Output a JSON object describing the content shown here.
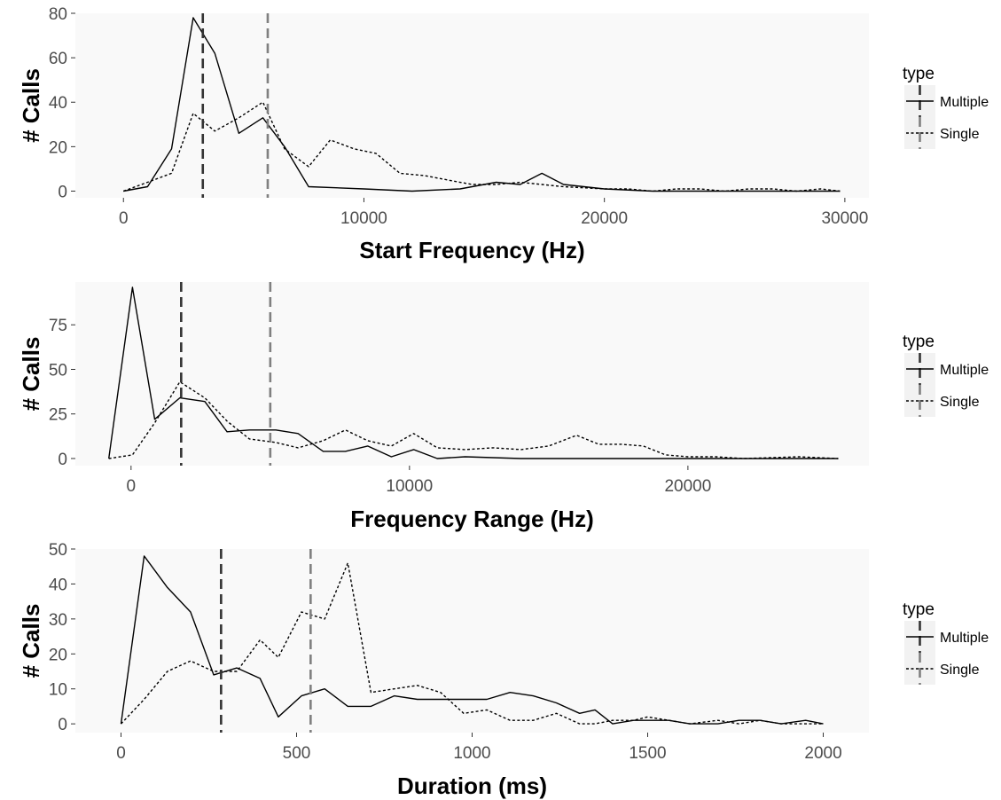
{
  "chart_data": [
    {
      "type": "line",
      "xlabel": "Start Frequency (Hz)",
      "ylabel": "# Calls",
      "xlim": [
        -2000,
        31000
      ],
      "ylim": [
        -3,
        80
      ],
      "xticks": [
        0,
        10000,
        20000,
        30000
      ],
      "yticks": [
        0,
        20,
        40,
        60,
        80
      ],
      "grid": false,
      "legend": {
        "title": "type",
        "placement": "right",
        "entries": [
          "Multiple",
          "Single"
        ]
      },
      "vlines": [
        {
          "series": "Multiple",
          "x": 3300,
          "color": "#333333"
        },
        {
          "series": "Single",
          "x": 6000,
          "color": "#808080"
        }
      ],
      "series": [
        {
          "name": "Multiple",
          "linestyle": "solid",
          "points": [
            [
              0,
              0
            ],
            [
              1000,
              2
            ],
            [
              2000,
              19
            ],
            [
              2900,
              78
            ],
            [
              3800,
              62
            ],
            [
              4800,
              26
            ],
            [
              5800,
              33
            ],
            [
              6700,
              20
            ],
            [
              7700,
              2
            ],
            [
              10000,
              1
            ],
            [
              12000,
              0
            ],
            [
              14000,
              1
            ],
            [
              15500,
              4
            ],
            [
              16500,
              3
            ],
            [
              17400,
              8
            ],
            [
              18300,
              3
            ],
            [
              20000,
              1
            ],
            [
              22000,
              0
            ],
            [
              25000,
              0
            ],
            [
              28000,
              0
            ],
            [
              29800,
              0
            ]
          ]
        },
        {
          "name": "Single",
          "linestyle": "dotted",
          "points": [
            [
              0,
              0
            ],
            [
              1000,
              4
            ],
            [
              2000,
              8
            ],
            [
              2900,
              35
            ],
            [
              3800,
              27
            ],
            [
              4800,
              33
            ],
            [
              5800,
              40
            ],
            [
              6700,
              19
            ],
            [
              7700,
              11
            ],
            [
              8600,
              23
            ],
            [
              9600,
              19
            ],
            [
              10500,
              17
            ],
            [
              11500,
              8
            ],
            [
              12500,
              7
            ],
            [
              13500,
              5
            ],
            [
              14500,
              3
            ],
            [
              15500,
              3
            ],
            [
              16500,
              4
            ],
            [
              17400,
              3
            ],
            [
              18300,
              2
            ],
            [
              20000,
              1
            ],
            [
              21000,
              1
            ],
            [
              22000,
              0
            ],
            [
              23000,
              1
            ],
            [
              24000,
              1
            ],
            [
              25000,
              0
            ],
            [
              26000,
              1
            ],
            [
              27000,
              1
            ],
            [
              28000,
              0
            ],
            [
              29000,
              1
            ],
            [
              29800,
              0
            ]
          ]
        }
      ]
    },
    {
      "type": "line",
      "xlabel": "Frequency Range (Hz)",
      "ylabel": "# Calls",
      "xlim": [
        -2000,
        26500
      ],
      "ylim": [
        -4,
        99
      ],
      "xticks": [
        0,
        10000,
        20000
      ],
      "yticks": [
        0,
        25,
        50,
        75
      ],
      "grid": false,
      "legend": {
        "title": "type",
        "placement": "right",
        "entries": [
          "Multiple",
          "Single"
        ]
      },
      "vlines": [
        {
          "series": "Multiple",
          "x": 1800,
          "color": "#333333"
        },
        {
          "series": "Single",
          "x": 5000,
          "color": "#808080"
        }
      ],
      "series": [
        {
          "name": "Multiple",
          "linestyle": "solid",
          "points": [
            [
              -800,
              0
            ],
            [
              50,
              96
            ],
            [
              850,
              22
            ],
            [
              1750,
              34
            ],
            [
              2650,
              32
            ],
            [
              3450,
              15
            ],
            [
              4250,
              16
            ],
            [
              5200,
              16
            ],
            [
              6000,
              14
            ],
            [
              6900,
              4
            ],
            [
              7700,
              4
            ],
            [
              8500,
              7
            ],
            [
              9350,
              1
            ],
            [
              10150,
              5
            ],
            [
              11000,
              0
            ],
            [
              12000,
              1
            ],
            [
              14000,
              0
            ],
            [
              16000,
              0
            ],
            [
              18000,
              0
            ],
            [
              20000,
              0
            ],
            [
              22000,
              0
            ],
            [
              24000,
              0
            ],
            [
              25400,
              0
            ]
          ]
        },
        {
          "name": "Single",
          "linestyle": "dotted",
          "points": [
            [
              -800,
              0
            ],
            [
              50,
              2
            ],
            [
              850,
              20
            ],
            [
              1750,
              43
            ],
            [
              2650,
              34
            ],
            [
              3450,
              21
            ],
            [
              4250,
              11
            ],
            [
              5200,
              9
            ],
            [
              6000,
              6
            ],
            [
              6900,
              10
            ],
            [
              7700,
              16
            ],
            [
              8500,
              10
            ],
            [
              9350,
              7
            ],
            [
              10150,
              14
            ],
            [
              11000,
              6
            ],
            [
              12000,
              5
            ],
            [
              13000,
              6
            ],
            [
              14000,
              5
            ],
            [
              15000,
              7
            ],
            [
              16000,
              13
            ],
            [
              16800,
              8
            ],
            [
              17600,
              8
            ],
            [
              18400,
              7
            ],
            [
              19200,
              2
            ],
            [
              20000,
              1
            ],
            [
              21000,
              1
            ],
            [
              22000,
              0
            ],
            [
              24000,
              1
            ],
            [
              25400,
              0
            ]
          ]
        }
      ]
    },
    {
      "type": "line",
      "xlabel": "Duration (ms)",
      "ylabel": "# Calls",
      "xlim": [
        -130,
        2130
      ],
      "ylim": [
        -2.5,
        50
      ],
      "xticks": [
        0,
        500,
        1000,
        1500,
        2000
      ],
      "yticks": [
        0,
        10,
        20,
        30,
        40,
        50
      ],
      "grid": false,
      "legend": {
        "title": "type",
        "placement": "right",
        "entries": [
          "Multiple",
          "Single"
        ]
      },
      "vlines": [
        {
          "series": "Multiple",
          "x": 285,
          "color": "#333333"
        },
        {
          "series": "Single",
          "x": 540,
          "color": "#808080"
        }
      ],
      "series": [
        {
          "name": "Multiple",
          "linestyle": "solid",
          "points": [
            [
              0,
              0
            ],
            [
              66,
              48
            ],
            [
              132,
              39
            ],
            [
              198,
              32
            ],
            [
              264,
              14
            ],
            [
              330,
              16
            ],
            [
              396,
              13
            ],
            [
              448,
              2
            ],
            [
              514,
              8
            ],
            [
              580,
              10
            ],
            [
              646,
              5
            ],
            [
              712,
              5
            ],
            [
              778,
              8
            ],
            [
              844,
              7
            ],
            [
              910,
              7
            ],
            [
              976,
              7
            ],
            [
              1042,
              7
            ],
            [
              1108,
              9
            ],
            [
              1174,
              8
            ],
            [
              1240,
              6
            ],
            [
              1306,
              3
            ],
            [
              1350,
              4
            ],
            [
              1400,
              0
            ],
            [
              1460,
              1
            ],
            [
              1500,
              1
            ],
            [
              1560,
              1
            ],
            [
              1620,
              0
            ],
            [
              1700,
              0
            ],
            [
              1760,
              1
            ],
            [
              1820,
              1
            ],
            [
              1880,
              0
            ],
            [
              1950,
              1
            ],
            [
              2000,
              0
            ]
          ]
        },
        {
          "name": "Single",
          "linestyle": "dotted",
          "points": [
            [
              0,
              0
            ],
            [
              66,
              7
            ],
            [
              132,
              15
            ],
            [
              198,
              18
            ],
            [
              264,
              15
            ],
            [
              330,
              15
            ],
            [
              396,
              24
            ],
            [
              448,
              19
            ],
            [
              514,
              32
            ],
            [
              580,
              30
            ],
            [
              646,
              46
            ],
            [
              712,
              9
            ],
            [
              778,
              10
            ],
            [
              844,
              11
            ],
            [
              910,
              9
            ],
            [
              976,
              3
            ],
            [
              1042,
              4
            ],
            [
              1108,
              1
            ],
            [
              1174,
              1
            ],
            [
              1240,
              3
            ],
            [
              1306,
              0
            ],
            [
              1350,
              0
            ],
            [
              1400,
              1
            ],
            [
              1460,
              1
            ],
            [
              1500,
              2
            ],
            [
              1560,
              1
            ],
            [
              1620,
              0
            ],
            [
              1700,
              1
            ],
            [
              1760,
              0
            ],
            [
              1820,
              1
            ],
            [
              1880,
              0
            ],
            [
              1950,
              0
            ],
            [
              2000,
              0
            ]
          ]
        }
      ]
    }
  ]
}
